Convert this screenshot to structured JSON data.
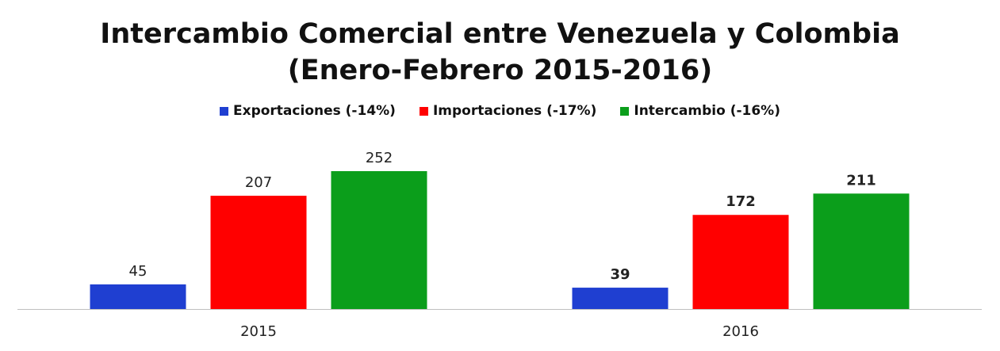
{
  "chart_data": {
    "type": "bar",
    "title": "Intercambio Comercial entre Venezuela y Colombia",
    "subtitle": "(Enero-Febrero 2015-2016)",
    "categories": [
      "2015",
      "2016"
    ],
    "series": [
      {
        "name": "Exportaciones (-14%)",
        "values": [
          45,
          39
        ],
        "color": "#1f3fd1",
        "value_labels": [
          "45",
          "39"
        ]
      },
      {
        "name": "Importaciones (-17%)",
        "values": [
          207,
          172
        ],
        "color": "#ff0000",
        "value_labels": [
          "207",
          "172"
        ]
      },
      {
        "name": "Intercambio (-16%)",
        "values": [
          252,
          211
        ],
        "color": "#0b9e1b",
        "value_labels": [
          "252",
          "211"
        ]
      }
    ],
    "bold_value_labels_for_category": [
      "2016"
    ],
    "ylim": [
      0,
      252
    ],
    "legend_position": "top",
    "grid": false
  }
}
